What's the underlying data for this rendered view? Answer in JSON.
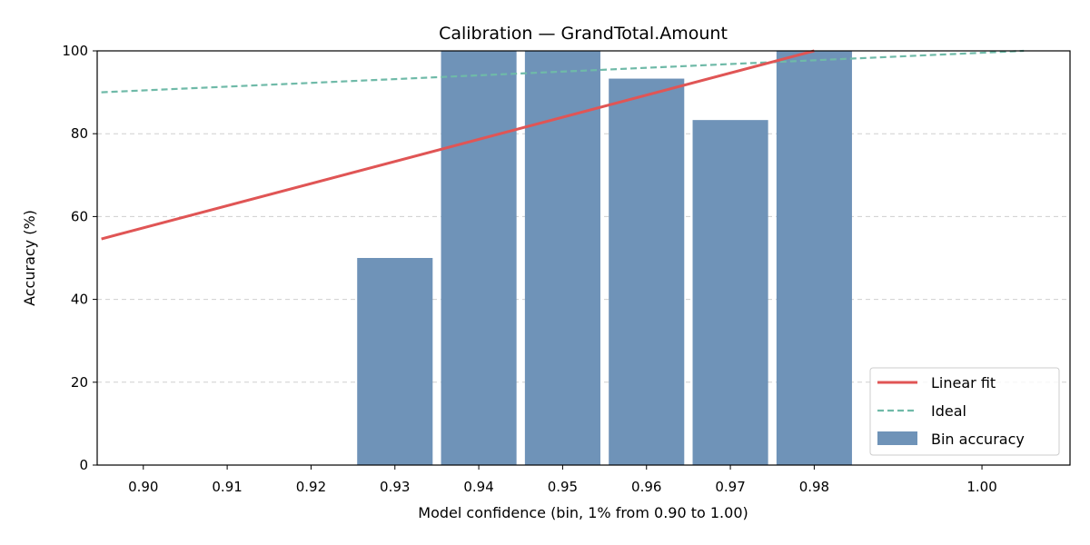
{
  "chart_data": {
    "type": "bar",
    "title": "Calibration — GrandTotal.Amount",
    "xlabel": "Model confidence (bin, 1% from 0.90 to 1.00)",
    "ylabel": "Accuracy (%)",
    "xlim": [
      0.8945,
      1.0105
    ],
    "ylim": [
      0,
      100
    ],
    "x_ticks": [
      0.9,
      0.91,
      0.92,
      0.93,
      0.94,
      0.95,
      0.96,
      0.97,
      0.98,
      1.0
    ],
    "x_tick_labels": [
      "0.90",
      "0.91",
      "0.92",
      "0.93",
      "0.94",
      "0.95",
      "0.96",
      "0.97",
      "0.98",
      "1.00"
    ],
    "y_ticks": [
      0,
      20,
      40,
      60,
      80,
      100
    ],
    "y_tick_labels": [
      "0",
      "20",
      "40",
      "60",
      "80",
      "100"
    ],
    "grid": "horizontal dashed",
    "legend_position": "bottom-right",
    "bins": {
      "name": "Bin accuracy",
      "color": "#6f93b8",
      "x": [
        0.93,
        0.94,
        0.95,
        0.96,
        0.97,
        0.98
      ],
      "values": [
        50,
        100,
        100,
        93.3,
        83.3,
        100
      ],
      "bar_width": 0.009
    },
    "linear_fit": {
      "name": "Linear fit",
      "color": "#e05555",
      "x": [
        0.895,
        0.98
      ],
      "y": [
        54.6,
        100
      ]
    },
    "ideal": {
      "name": "Ideal",
      "color": "#6fbaa8",
      "x": [
        0.895,
        1.005
      ],
      "y": [
        90,
        100
      ]
    }
  }
}
